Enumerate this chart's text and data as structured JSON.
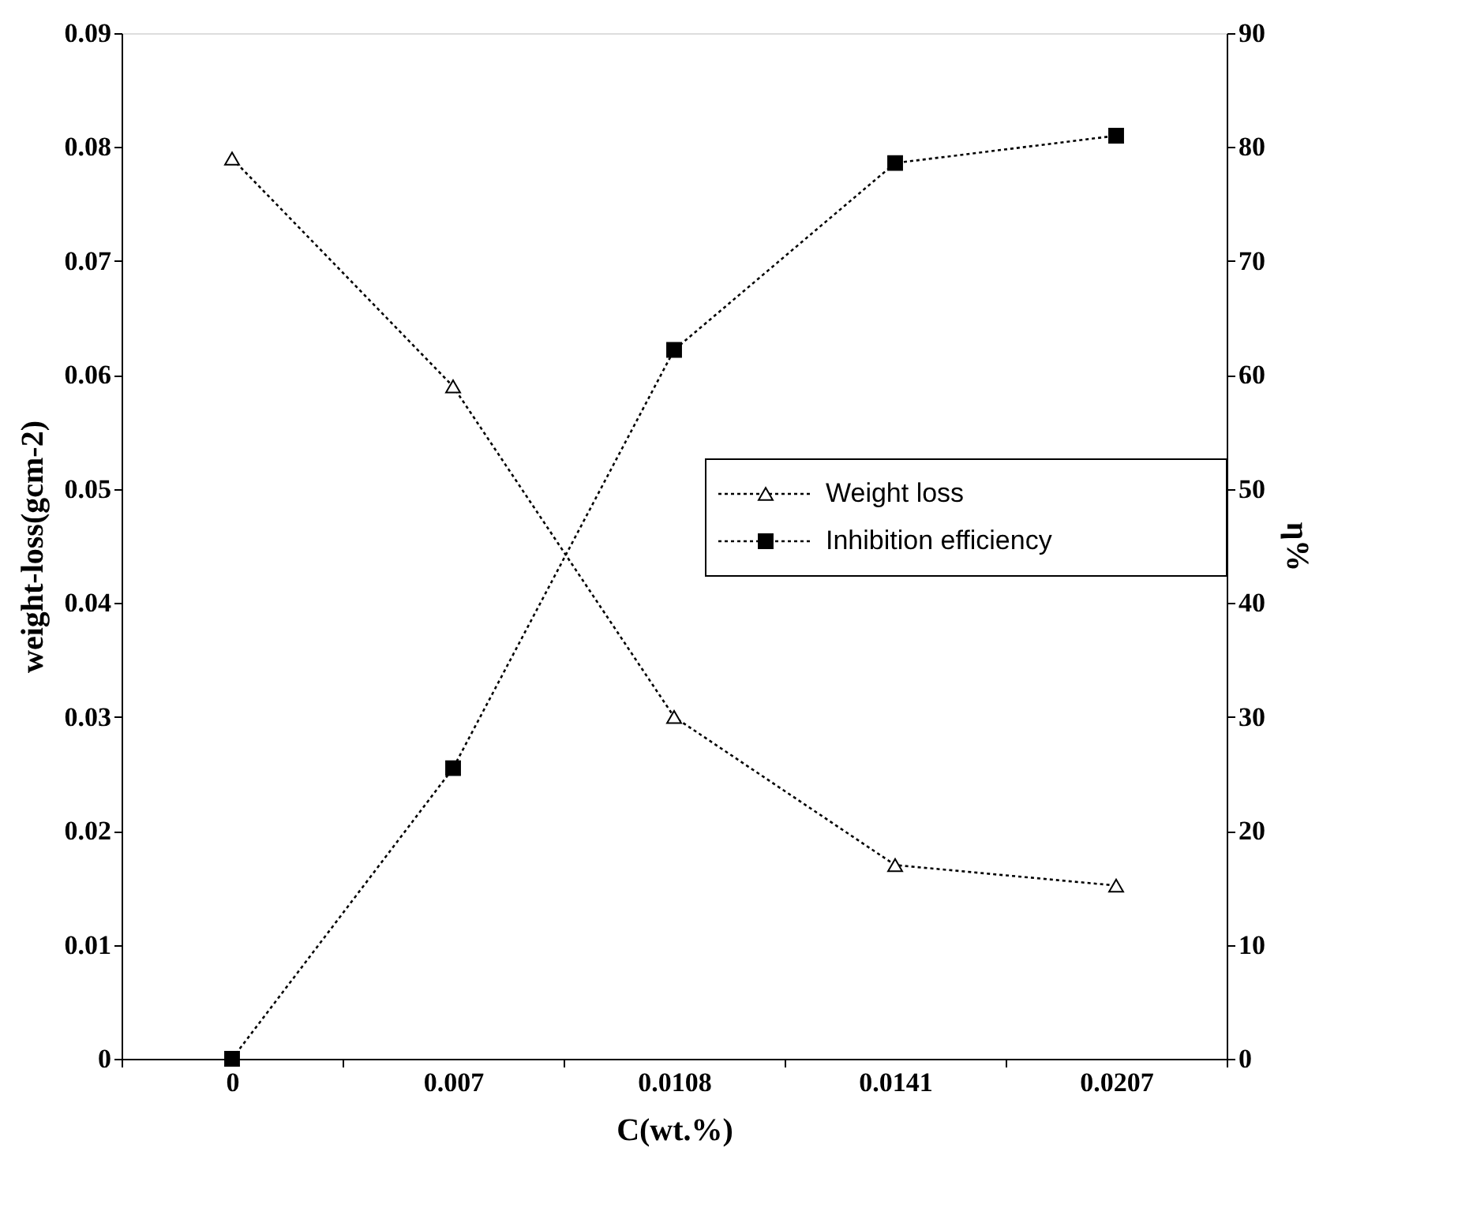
{
  "chart_data": {
    "type": "line",
    "xlabel": "C(wt.%)",
    "ylabel": "weight-loss(gcm-2)",
    "y2label": "η%",
    "categories": [
      "0",
      "0.007",
      "0.0108",
      "0.0141",
      "0.0207"
    ],
    "series": [
      {
        "name": "Weight loss",
        "color": "#000000",
        "marker": "triangle",
        "values": [
          0.079,
          0.059,
          0.03,
          0.017,
          0.0152
        ]
      },
      {
        "name": "Inhibition efficiency",
        "color": "#000000",
        "marker": "square",
        "axis": "y2",
        "values": [
          0,
          25.5,
          62.2,
          78.6,
          81.0
        ]
      }
    ],
    "ylim": [
      0,
      0.09
    ],
    "yticks": [
      0,
      0.01,
      0.02,
      0.03,
      0.04,
      0.05,
      0.06,
      0.07,
      0.08,
      0.09
    ],
    "y2lim": [
      0,
      90
    ],
    "y2ticks": [
      0,
      10,
      20,
      30,
      40,
      50,
      60,
      70,
      80,
      90
    ],
    "line_style": "dotted",
    "grid": false,
    "legend": "right"
  }
}
